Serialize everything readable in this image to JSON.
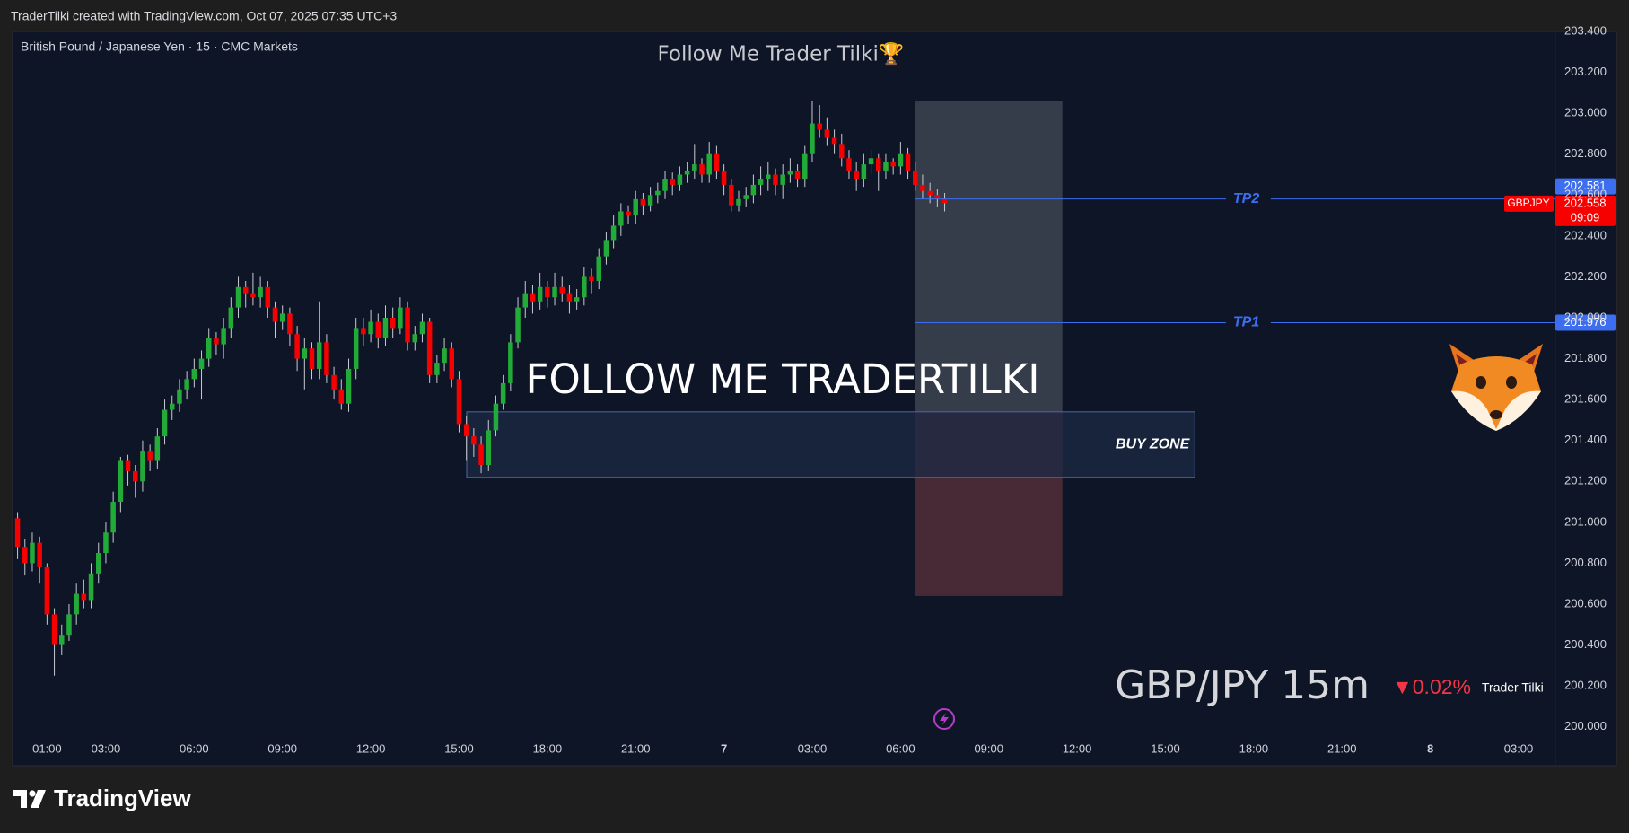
{
  "header": {
    "attribution": "TraderTilki created with TradingView.com, Oct 07, 2025 07:35 UTC+3"
  },
  "chart_data": {
    "type": "candlestick",
    "title": "Follow Me Trader Tilki🏆",
    "subtitle": "British Pound / Japanese Yen · 15 · CMC Markets",
    "x": [
      0,
      0.25,
      0.5,
      0.75,
      1,
      1.25,
      1.5,
      1.75,
      2,
      2.25,
      2.5,
      2.75,
      3,
      3.25,
      3.5,
      3.75,
      4,
      4.25,
      4.5,
      4.75,
      5,
      5.25,
      5.5,
      5.75,
      6,
      6.25,
      6.5,
      6.75,
      7,
      7.25,
      7.5,
      7.75,
      8,
      8.25,
      8.5,
      8.75,
      9,
      9.25,
      9.5,
      9.75,
      10,
      10.25,
      10.5,
      10.75,
      11,
      11.25,
      11.5,
      11.75,
      12,
      12.25,
      12.5,
      12.75,
      13,
      13.25,
      13.5,
      13.75,
      14,
      14.25,
      14.5,
      14.75,
      15,
      15.25,
      15.5,
      15.75,
      16,
      16.25,
      16.5,
      16.75,
      17,
      17.25,
      17.5,
      17.75,
      18,
      18.25,
      18.5,
      18.75,
      19,
      19.25,
      19.5,
      19.75,
      20,
      20.25,
      20.5,
      20.75,
      21,
      21.25,
      21.5,
      21.75,
      22,
      22.25,
      22.5,
      22.75,
      23,
      23.25,
      23.5,
      23.75,
      24,
      24.25,
      24.5,
      24.75,
      25,
      25.25,
      25.5,
      25.75,
      26,
      26.25,
      26.5,
      26.75,
      27,
      27.25,
      27.5,
      27.75,
      28,
      28.25,
      28.5,
      28.75,
      29,
      29.25,
      29.5,
      29.75,
      30,
      30.25,
      30.5,
      30.75,
      31,
      31.25,
      31.5
    ],
    "series": [
      {
        "name": "GBPJPY",
        "up_color": "#22ab38",
        "down_color": "#f70000",
        "wick_color": "#c8cbd3",
        "values": [
          [
            201.02,
            201.05,
            200.82,
            200.88
          ],
          [
            200.88,
            200.92,
            200.74,
            200.8
          ],
          [
            200.8,
            200.95,
            200.76,
            200.9
          ],
          [
            200.9,
            200.93,
            200.7,
            200.78
          ],
          [
            200.78,
            200.8,
            200.5,
            200.55
          ],
          [
            200.55,
            200.58,
            200.25,
            200.4
          ],
          [
            200.4,
            200.5,
            200.35,
            200.45
          ],
          [
            200.45,
            200.6,
            200.42,
            200.55
          ],
          [
            200.55,
            200.7,
            200.5,
            200.65
          ],
          [
            200.65,
            200.72,
            200.58,
            200.62
          ],
          [
            200.62,
            200.8,
            200.58,
            200.75
          ],
          [
            200.75,
            200.9,
            200.7,
            200.85
          ],
          [
            200.85,
            201.0,
            200.8,
            200.95
          ],
          [
            200.95,
            201.15,
            200.9,
            201.1
          ],
          [
            201.1,
            201.32,
            201.05,
            201.3
          ],
          [
            201.3,
            201.33,
            201.18,
            201.25
          ],
          [
            201.25,
            201.28,
            201.12,
            201.2
          ],
          [
            201.2,
            201.4,
            201.15,
            201.35
          ],
          [
            201.35,
            201.38,
            201.25,
            201.3
          ],
          [
            201.3,
            201.46,
            201.26,
            201.42
          ],
          [
            201.42,
            201.6,
            201.38,
            201.55
          ],
          [
            201.55,
            201.62,
            201.5,
            201.58
          ],
          [
            201.58,
            201.7,
            201.54,
            201.65
          ],
          [
            201.65,
            201.74,
            201.6,
            201.7
          ],
          [
            201.7,
            201.8,
            201.66,
            201.75
          ],
          [
            201.75,
            201.84,
            201.6,
            201.8
          ],
          [
            201.8,
            201.95,
            201.76,
            201.9
          ],
          [
            201.9,
            201.93,
            201.82,
            201.87
          ],
          [
            201.87,
            202.0,
            201.8,
            201.95
          ],
          [
            201.95,
            202.1,
            201.9,
            202.05
          ],
          [
            202.05,
            202.2,
            202.0,
            202.15
          ],
          [
            202.15,
            202.18,
            202.05,
            202.12
          ],
          [
            202.12,
            202.22,
            202.06,
            202.1
          ],
          [
            202.1,
            202.2,
            202.05,
            202.15
          ],
          [
            202.15,
            202.18,
            202.0,
            202.05
          ],
          [
            202.05,
            202.08,
            201.9,
            201.98
          ],
          [
            201.98,
            202.06,
            201.94,
            202.02
          ],
          [
            202.02,
            202.05,
            201.86,
            201.92
          ],
          [
            201.92,
            201.96,
            201.74,
            201.8
          ],
          [
            201.8,
            201.9,
            201.65,
            201.85
          ],
          [
            201.85,
            201.88,
            201.7,
            201.75
          ],
          [
            201.75,
            202.08,
            201.7,
            201.88
          ],
          [
            201.88,
            201.92,
            201.68,
            201.72
          ],
          [
            201.72,
            201.76,
            201.6,
            201.65
          ],
          [
            201.65,
            201.7,
            201.55,
            201.58
          ],
          [
            201.58,
            201.8,
            201.54,
            201.75
          ],
          [
            201.75,
            202.0,
            201.7,
            201.95
          ],
          [
            201.95,
            202.0,
            201.86,
            201.92
          ],
          [
            201.92,
            202.04,
            201.88,
            201.98
          ],
          [
            201.98,
            202.02,
            201.85,
            201.9
          ],
          [
            201.9,
            202.06,
            201.86,
            202.0
          ],
          [
            202.0,
            202.05,
            201.9,
            201.95
          ],
          [
            201.95,
            202.1,
            201.92,
            202.05
          ],
          [
            202.05,
            202.08,
            201.84,
            201.88
          ],
          [
            201.88,
            201.96,
            201.84,
            201.92
          ],
          [
            201.92,
            202.02,
            201.88,
            201.98
          ],
          [
            201.98,
            202.0,
            201.68,
            201.72
          ],
          [
            201.72,
            201.82,
            201.68,
            201.78
          ],
          [
            201.78,
            201.9,
            201.74,
            201.85
          ],
          [
            201.85,
            201.88,
            201.66,
            201.7
          ],
          [
            201.7,
            201.74,
            201.44,
            201.48
          ],
          [
            201.48,
            201.52,
            201.3,
            201.42
          ],
          [
            201.42,
            201.46,
            201.32,
            201.38
          ],
          [
            201.38,
            201.42,
            201.24,
            201.28
          ],
          [
            201.28,
            201.5,
            201.25,
            201.45
          ],
          [
            201.45,
            201.62,
            201.42,
            201.58
          ],
          [
            201.58,
            201.72,
            201.55,
            201.68
          ],
          [
            201.68,
            201.92,
            201.64,
            201.88
          ],
          [
            201.88,
            202.1,
            201.85,
            202.05
          ],
          [
            202.05,
            202.18,
            202.0,
            202.12
          ],
          [
            202.12,
            202.16,
            202.02,
            202.08
          ],
          [
            202.08,
            202.22,
            202.04,
            202.15
          ],
          [
            202.15,
            202.18,
            202.05,
            202.1
          ],
          [
            202.1,
            202.22,
            202.06,
            202.15
          ],
          [
            202.15,
            202.2,
            202.08,
            202.12
          ],
          [
            202.12,
            202.16,
            202.02,
            202.08
          ],
          [
            202.08,
            202.14,
            202.04,
            202.1
          ],
          [
            202.1,
            202.25,
            202.06,
            202.2
          ],
          [
            202.2,
            202.24,
            202.12,
            202.18
          ],
          [
            202.18,
            202.34,
            202.14,
            202.3
          ],
          [
            202.3,
            202.42,
            202.26,
            202.38
          ],
          [
            202.38,
            202.5,
            202.34,
            202.45
          ],
          [
            202.45,
            202.56,
            202.4,
            202.52
          ],
          [
            202.52,
            202.55,
            202.46,
            202.5
          ],
          [
            202.5,
            202.62,
            202.46,
            202.58
          ],
          [
            202.58,
            202.61,
            202.5,
            202.55
          ],
          [
            202.55,
            202.64,
            202.52,
            202.6
          ],
          [
            202.6,
            202.66,
            202.56,
            202.62
          ],
          [
            202.62,
            202.72,
            202.58,
            202.68
          ],
          [
            202.68,
            202.71,
            202.6,
            202.65
          ],
          [
            202.65,
            202.74,
            202.62,
            202.7
          ],
          [
            202.7,
            202.76,
            202.66,
            202.72
          ],
          [
            202.72,
            202.85,
            202.68,
            202.75
          ],
          [
            202.75,
            202.78,
            202.66,
            202.7
          ],
          [
            202.7,
            202.86,
            202.66,
            202.8
          ],
          [
            202.8,
            202.84,
            202.68,
            202.72
          ],
          [
            202.72,
            202.75,
            202.6,
            202.65
          ],
          [
            202.65,
            202.68,
            202.52,
            202.55
          ],
          [
            202.55,
            202.62,
            202.52,
            202.58
          ],
          [
            202.58,
            202.64,
            202.54,
            202.6
          ],
          [
            202.6,
            202.7,
            202.56,
            202.65
          ],
          [
            202.65,
            202.74,
            202.6,
            202.68
          ],
          [
            202.68,
            202.76,
            202.62,
            202.7
          ],
          [
            202.7,
            202.73,
            202.6,
            202.65
          ],
          [
            202.65,
            202.75,
            202.58,
            202.7
          ],
          [
            202.7,
            202.78,
            202.66,
            202.72
          ],
          [
            202.72,
            202.75,
            202.64,
            202.68
          ],
          [
            202.68,
            202.84,
            202.64,
            202.8
          ],
          [
            202.8,
            203.06,
            202.76,
            202.95
          ],
          [
            202.95,
            203.04,
            202.88,
            202.92
          ],
          [
            202.92,
            202.98,
            202.84,
            202.88
          ],
          [
            202.88,
            202.92,
            202.8,
            202.85
          ],
          [
            202.85,
            202.9,
            202.74,
            202.78
          ],
          [
            202.78,
            202.82,
            202.68,
            202.72
          ],
          [
            202.72,
            202.76,
            202.62,
            202.68
          ],
          [
            202.68,
            202.8,
            202.64,
            202.75
          ],
          [
            202.75,
            202.82,
            202.7,
            202.78
          ],
          [
            202.78,
            202.8,
            202.62,
            202.72
          ],
          [
            202.72,
            202.8,
            202.68,
            202.76
          ],
          [
            202.76,
            202.78,
            202.7,
            202.74
          ],
          [
            202.74,
            202.86,
            202.7,
            202.8
          ],
          [
            202.8,
            202.83,
            202.68,
            202.72
          ],
          [
            202.72,
            202.76,
            202.62,
            202.65
          ],
          [
            202.65,
            202.7,
            202.58,
            202.62
          ],
          [
            202.62,
            202.66,
            202.56,
            202.6
          ],
          [
            202.6,
            202.63,
            202.54,
            202.58
          ],
          [
            202.58,
            202.61,
            202.52,
            202.56
          ]
        ]
      }
    ],
    "xlim": [
      -0.17,
      52.25
    ],
    "xticks": [
      {
        "value": 1,
        "label": "01:00"
      },
      {
        "value": 3,
        "label": "03:00"
      },
      {
        "value": 6,
        "label": "06:00"
      },
      {
        "value": 9,
        "label": "09:00"
      },
      {
        "value": 12,
        "label": "12:00"
      },
      {
        "value": 15,
        "label": "15:00"
      },
      {
        "value": 18,
        "label": "18:00"
      },
      {
        "value": 21,
        "label": "21:00"
      },
      {
        "value": 24,
        "label": "7"
      },
      {
        "value": 27,
        "label": "03:00"
      },
      {
        "value": 30,
        "label": "06:00"
      },
      {
        "value": 33,
        "label": "09:00"
      },
      {
        "value": 36,
        "label": "12:00"
      },
      {
        "value": 39,
        "label": "15:00"
      },
      {
        "value": 42,
        "label": "18:00"
      },
      {
        "value": 45,
        "label": "21:00"
      },
      {
        "value": 48,
        "label": "8"
      },
      {
        "value": 51,
        "label": "03:00"
      }
    ],
    "ylim": [
      199.81,
      203.4
    ],
    "yticks": [
      {
        "value": 200.0,
        "label": "200.000"
      },
      {
        "value": 200.2,
        "label": "200.200"
      },
      {
        "value": 200.4,
        "label": "200.400"
      },
      {
        "value": 200.6,
        "label": "200.600"
      },
      {
        "value": 200.8,
        "label": "200.800"
      },
      {
        "value": 201.0,
        "label": "201.000"
      },
      {
        "value": 201.2,
        "label": "201.200"
      },
      {
        "value": 201.4,
        "label": "201.400"
      },
      {
        "value": 201.6,
        "label": "201.600"
      },
      {
        "value": 201.8,
        "label": "201.800"
      },
      {
        "value": 202.0,
        "label": "202.000"
      },
      {
        "value": 202.2,
        "label": "202.200"
      },
      {
        "value": 202.4,
        "label": "202.400"
      },
      {
        "value": 202.6,
        "label": "202.600"
      },
      {
        "value": 202.8,
        "label": "202.800"
      },
      {
        "value": 203.0,
        "label": "203.000"
      },
      {
        "value": 203.2,
        "label": "203.200"
      },
      {
        "value": 203.4,
        "label": "203.400"
      }
    ],
    "grid": false,
    "last_price": {
      "value": 202.558,
      "countdown": "09:09",
      "color": "#f70000"
    },
    "levels": [
      {
        "label": "TP2",
        "value": 202.581,
        "x_start": 30.5,
        "color": "#3d6ef0"
      },
      {
        "label": "TP1",
        "value": 201.976,
        "x_start": 30.5,
        "color": "#3d6ef0"
      }
    ],
    "zone": {
      "label": "BUY ZONE",
      "x": [
        15.26,
        40.0
      ],
      "top": 201.54,
      "bottom": 201.22,
      "fill": "#1c2a44",
      "stroke": "#4b68a3"
    },
    "position": {
      "x": [
        30.5,
        35.5
      ],
      "target": 203.06,
      "entry": 201.54,
      "stop": 200.64,
      "profit_color": "#353c4a",
      "loss_color": "#472a36"
    },
    "annotations": {
      "headline": "FOLLOW ME TRADERTILKI",
      "watermark": "GBP/JPY 15m",
      "change": "▼0.02%",
      "author": "Trader Tilki"
    }
  },
  "footer": {
    "brand": "TradingView"
  }
}
